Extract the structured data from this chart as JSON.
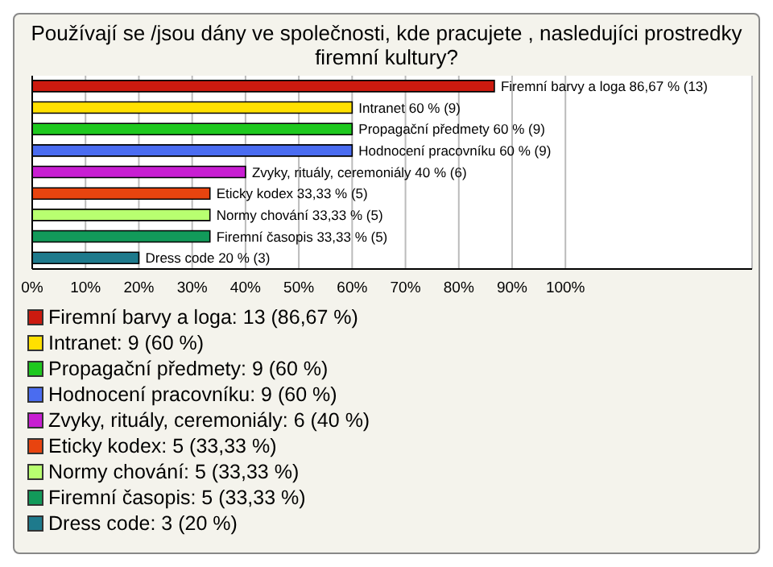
{
  "chart_data": {
    "type": "bar",
    "orientation": "horizontal",
    "title": "Používají se /jsou dány ve společnosti, kde pracujete , nasledujíci prostredky firemní kultury?",
    "categories": [
      "Firemní barvy a loga",
      "Intranet",
      "Propagační předmety",
      "Hodnocení pracovníku",
      "Zvyky, rituály, ceremoniály",
      "Eticky kodex",
      "Normy chování",
      "Firemní časopis",
      "Dress code"
    ],
    "values": [
      86.67,
      60,
      60,
      60,
      40,
      33.33,
      33.33,
      33.33,
      20
    ],
    "value_labels": [
      "86,67 % (13)",
      "60 % (9)",
      "60 % (9)",
      "60 % (9)",
      "40 % (6)",
      "33,33 % (5)",
      "33,33 % (5)",
      "33,33 % (5)",
      "20 % (3)"
    ],
    "colors": [
      "#cc1a0f",
      "#ffe000",
      "#1ec81e",
      "#4a6cf0",
      "#c81ed2",
      "#e8440f",
      "#b8ff70",
      "#129a5a",
      "#1e7a8c"
    ],
    "xlim": [
      0,
      135
    ],
    "xticks": [
      {
        "value": 0,
        "label": "0%"
      },
      {
        "value": 10,
        "label": "10%"
      },
      {
        "value": 20,
        "label": "20%"
      },
      {
        "value": 30,
        "label": "30%"
      },
      {
        "value": 40,
        "label": "40%"
      },
      {
        "value": 50,
        "label": "50%"
      },
      {
        "value": 60,
        "label": "60%"
      },
      {
        "value": 70,
        "label": "70%"
      },
      {
        "value": 80,
        "label": "80%"
      },
      {
        "value": 90,
        "label": "90%"
      },
      {
        "value": 100,
        "label": "100%"
      }
    ],
    "grid": "x",
    "tick_labels": "x",
    "annotations": [
      "Firemní barvy a loga: 13 (86,67 %)",
      "Intranet: 9 (60 %)",
      "Propagační předmety: 9 (60 %)",
      "Hodnocení pracovníku: 9 (60 %)",
      "Zvyky, rituály, ceremoniály: 6 (40 %)",
      "Eticky kodex: 5 (33,33 %)",
      "Normy chování: 5 (33,33 %)",
      "Firemní časopis: 5 (33,33 %)",
      "Dress code: 3 (20 %)"
    ]
  }
}
